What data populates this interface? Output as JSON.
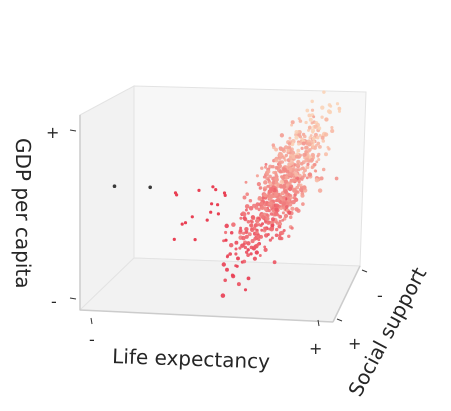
{
  "chart_data": {
    "type": "scatter",
    "projection": "3d",
    "axes": {
      "x": {
        "label": "Life expectancy",
        "min_tick": "-",
        "max_tick": "+"
      },
      "y": {
        "label": "Social support",
        "min_tick": "-",
        "max_tick": "+"
      },
      "z": {
        "label": "GDP per capita",
        "min_tick": "-",
        "max_tick": "+"
      }
    },
    "range": {
      "x": [
        0,
        1
      ],
      "y": [
        0,
        1
      ],
      "z": [
        0,
        1
      ]
    },
    "grid": false,
    "legend": "none",
    "colors": {
      "pane": "#f2f2f2",
      "pane_edge": "#d9d9d9",
      "low": "#e8384f",
      "high": "#fad3b7",
      "outlier": "#3a3a3a"
    },
    "cluster": {
      "description_of_trend": "positive",
      "count": 700
    },
    "points_outliers": [
      {
        "x": 0.02,
        "y": 0.55,
        "z": 0.52
      },
      {
        "x": 0.17,
        "y": 0.55,
        "z": 0.52
      }
    ]
  }
}
